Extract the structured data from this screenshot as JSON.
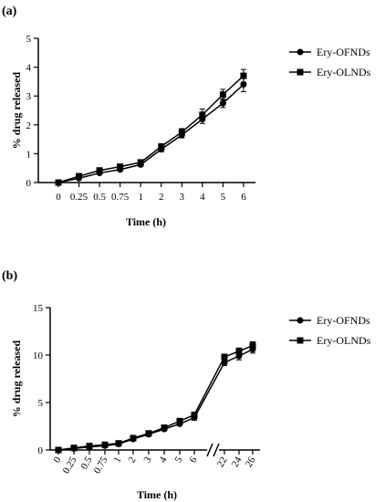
{
  "chart_data": [
    {
      "panel": "(a)",
      "type": "line",
      "categories": [
        "0",
        "0.25",
        "0.5",
        "0.75",
        "1",
        "2",
        "3",
        "4",
        "5",
        "6"
      ],
      "xlabel": "Time (h)",
      "ylabel": "% drug released",
      "ylim": [
        0,
        5
      ],
      "yticks": [
        "0",
        "1",
        "2",
        "3",
        "4",
        "5"
      ],
      "legend_position": "top-right",
      "grid": false,
      "series": [
        {
          "name": "Ery-OFNDs",
          "marker": "circle",
          "values": [
            0,
            0.15,
            0.33,
            0.45,
            0.62,
            1.15,
            1.65,
            2.2,
            2.75,
            3.4
          ],
          "errors": [
            0.02,
            0.03,
            0.04,
            0.05,
            0.06,
            0.08,
            0.1,
            0.15,
            0.15,
            0.25
          ]
        },
        {
          "name": "Ery-OLNDs",
          "marker": "square",
          "values": [
            0,
            0.22,
            0.42,
            0.55,
            0.7,
            1.25,
            1.75,
            2.35,
            3.05,
            3.7
          ],
          "errors": [
            0.02,
            0.03,
            0.04,
            0.05,
            0.06,
            0.08,
            0.12,
            0.2,
            0.18,
            0.22
          ]
        }
      ]
    },
    {
      "panel": "(b)",
      "type": "line",
      "categories": [
        "0",
        "0.25",
        "0.5",
        "0.75",
        "1",
        "2",
        "3",
        "4",
        "5",
        "6",
        "22",
        "24",
        "26"
      ],
      "axis_break_after": "6",
      "xlabel": "Time (h)",
      "ylabel": "% drug released",
      "ylim": [
        0,
        15
      ],
      "yticks": [
        "0",
        "5",
        "10",
        "15"
      ],
      "legend_position": "top-right",
      "grid": false,
      "series": [
        {
          "name": "Ery-OFNDs",
          "marker": "circle",
          "values": [
            0,
            0.15,
            0.33,
            0.45,
            0.62,
            1.15,
            1.65,
            2.2,
            2.75,
            3.4,
            9.2,
            9.9,
            10.6
          ],
          "errors": [
            0.02,
            0.03,
            0.04,
            0.05,
            0.06,
            0.08,
            0.1,
            0.15,
            0.15,
            0.25,
            0.3,
            0.4,
            0.4
          ]
        },
        {
          "name": "Ery-OLNDs",
          "marker": "square",
          "values": [
            0,
            0.22,
            0.42,
            0.55,
            0.7,
            1.25,
            1.75,
            2.35,
            3.05,
            3.7,
            9.8,
            10.4,
            11.0
          ],
          "errors": [
            0.02,
            0.03,
            0.04,
            0.05,
            0.06,
            0.08,
            0.12,
            0.2,
            0.18,
            0.22,
            0.3,
            0.35,
            0.4
          ]
        }
      ]
    }
  ]
}
